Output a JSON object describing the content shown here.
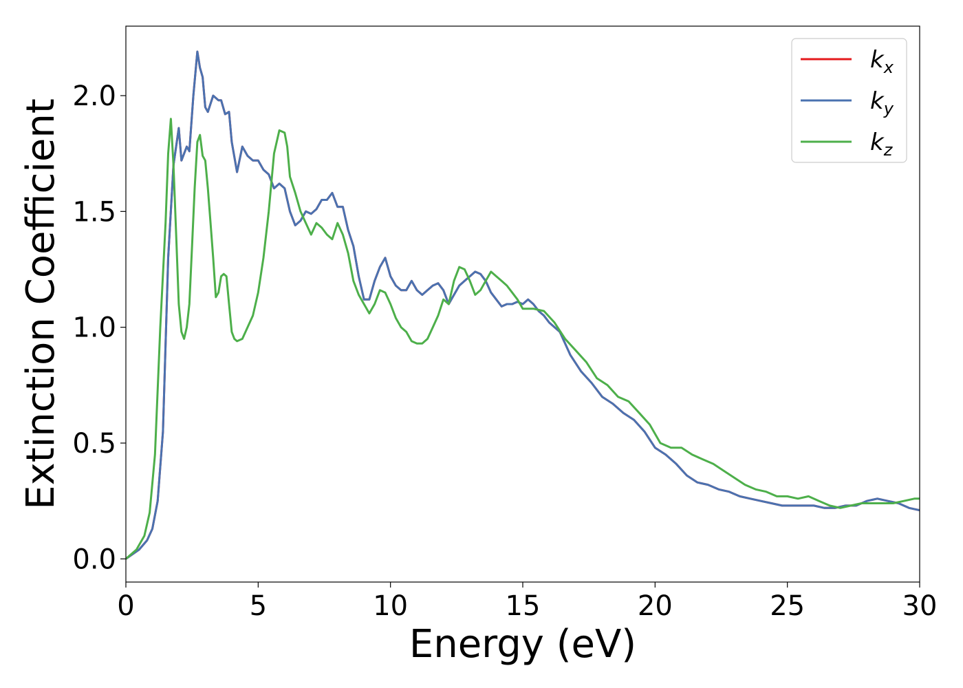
{
  "chart_data": {
    "type": "line",
    "xlabel": "Energy (eV)",
    "ylabel": "Extinction Coefficient",
    "xlim": [
      0,
      30
    ],
    "ylim": [
      -0.1,
      2.3
    ],
    "xticks": [
      "0",
      "5",
      "10",
      "15",
      "20",
      "25",
      "30"
    ],
    "yticks": [
      "0.0",
      "0.5",
      "1.0",
      "1.5",
      "2.0"
    ],
    "grid": false,
    "legend_position": "top-right",
    "series": [
      {
        "name": "k_x",
        "label_main": "k",
        "label_sub": "x",
        "color": "#e41a1c",
        "x": [
          0,
          0.5,
          0.8,
          1.0,
          1.2,
          1.4,
          1.6,
          1.8,
          2.0,
          2.1,
          2.3,
          2.4,
          2.55,
          2.7,
          2.8,
          2.9,
          3.0,
          3.1,
          3.3,
          3.5,
          3.6,
          3.75,
          3.9,
          4.0,
          4.2,
          4.4,
          4.6,
          4.8,
          5.0,
          5.2,
          5.4,
          5.6,
          5.8,
          6.0,
          6.2,
          6.4,
          6.6,
          6.8,
          7.0,
          7.2,
          7.4,
          7.6,
          7.8,
          8.0,
          8.2,
          8.4,
          8.6,
          8.8,
          9.0,
          9.2,
          9.4,
          9.6,
          9.8,
          10.0,
          10.2,
          10.4,
          10.6,
          10.8,
          11.0,
          11.2,
          11.4,
          11.6,
          11.8,
          12.0,
          12.2,
          12.4,
          12.6,
          12.8,
          13.0,
          13.2,
          13.4,
          13.6,
          13.8,
          14.0,
          14.2,
          14.4,
          14.6,
          14.8,
          15.0,
          15.2,
          15.4,
          15.6,
          15.8,
          16.0,
          16.4,
          16.8,
          17.2,
          17.6,
          18.0,
          18.4,
          18.8,
          19.2,
          19.6,
          20.0,
          20.4,
          20.8,
          21.2,
          21.6,
          22.0,
          22.4,
          22.8,
          23.2,
          23.6,
          24.0,
          24.4,
          24.8,
          25.2,
          25.6,
          26.0,
          26.4,
          26.8,
          27.2,
          27.6,
          28.0,
          28.4,
          28.8,
          29.2,
          29.6,
          30.0
        ],
        "y": [
          0.0,
          0.04,
          0.08,
          0.13,
          0.25,
          0.55,
          1.3,
          1.7,
          1.86,
          1.72,
          1.78,
          1.76,
          2.0,
          2.19,
          2.12,
          2.08,
          1.95,
          1.93,
          2.0,
          1.98,
          1.98,
          1.92,
          1.93,
          1.8,
          1.67,
          1.78,
          1.74,
          1.72,
          1.72,
          1.68,
          1.66,
          1.6,
          1.62,
          1.6,
          1.5,
          1.44,
          1.46,
          1.5,
          1.49,
          1.51,
          1.55,
          1.55,
          1.58,
          1.52,
          1.52,
          1.42,
          1.35,
          1.22,
          1.12,
          1.12,
          1.2,
          1.26,
          1.3,
          1.22,
          1.18,
          1.16,
          1.16,
          1.2,
          1.16,
          1.14,
          1.16,
          1.18,
          1.19,
          1.16,
          1.1,
          1.14,
          1.18,
          1.2,
          1.22,
          1.24,
          1.23,
          1.2,
          1.15,
          1.12,
          1.09,
          1.1,
          1.1,
          1.11,
          1.1,
          1.12,
          1.1,
          1.07,
          1.05,
          1.02,
          0.98,
          0.88,
          0.81,
          0.76,
          0.7,
          0.67,
          0.63,
          0.6,
          0.55,
          0.48,
          0.45,
          0.41,
          0.36,
          0.33,
          0.32,
          0.3,
          0.29,
          0.27,
          0.26,
          0.25,
          0.24,
          0.23,
          0.23,
          0.23,
          0.23,
          0.22,
          0.22,
          0.23,
          0.23,
          0.25,
          0.26,
          0.25,
          0.24,
          0.22,
          0.21
        ]
      },
      {
        "name": "k_y",
        "label_main": "k",
        "label_sub": "y",
        "color": "#4a72b0",
        "x": [
          0,
          0.5,
          0.8,
          1.0,
          1.2,
          1.4,
          1.6,
          1.8,
          2.0,
          2.1,
          2.3,
          2.4,
          2.55,
          2.7,
          2.8,
          2.9,
          3.0,
          3.1,
          3.3,
          3.5,
          3.6,
          3.75,
          3.9,
          4.0,
          4.2,
          4.4,
          4.6,
          4.8,
          5.0,
          5.2,
          5.4,
          5.6,
          5.8,
          6.0,
          6.2,
          6.4,
          6.6,
          6.8,
          7.0,
          7.2,
          7.4,
          7.6,
          7.8,
          8.0,
          8.2,
          8.4,
          8.6,
          8.8,
          9.0,
          9.2,
          9.4,
          9.6,
          9.8,
          10.0,
          10.2,
          10.4,
          10.6,
          10.8,
          11.0,
          11.2,
          11.4,
          11.6,
          11.8,
          12.0,
          12.2,
          12.4,
          12.6,
          12.8,
          13.0,
          13.2,
          13.4,
          13.6,
          13.8,
          14.0,
          14.2,
          14.4,
          14.6,
          14.8,
          15.0,
          15.2,
          15.4,
          15.6,
          15.8,
          16.0,
          16.4,
          16.8,
          17.2,
          17.6,
          18.0,
          18.4,
          18.8,
          19.2,
          19.6,
          20.0,
          20.4,
          20.8,
          21.2,
          21.6,
          22.0,
          22.4,
          22.8,
          23.2,
          23.6,
          24.0,
          24.4,
          24.8,
          25.2,
          25.6,
          26.0,
          26.4,
          26.8,
          27.2,
          27.6,
          28.0,
          28.4,
          28.8,
          29.2,
          29.6,
          30.0
        ],
        "y": [
          0.0,
          0.04,
          0.08,
          0.13,
          0.25,
          0.55,
          1.3,
          1.7,
          1.86,
          1.72,
          1.78,
          1.76,
          2.0,
          2.19,
          2.12,
          2.08,
          1.95,
          1.93,
          2.0,
          1.98,
          1.98,
          1.92,
          1.93,
          1.8,
          1.67,
          1.78,
          1.74,
          1.72,
          1.72,
          1.68,
          1.66,
          1.6,
          1.62,
          1.6,
          1.5,
          1.44,
          1.46,
          1.5,
          1.49,
          1.51,
          1.55,
          1.55,
          1.58,
          1.52,
          1.52,
          1.42,
          1.35,
          1.22,
          1.12,
          1.12,
          1.2,
          1.26,
          1.3,
          1.22,
          1.18,
          1.16,
          1.16,
          1.2,
          1.16,
          1.14,
          1.16,
          1.18,
          1.19,
          1.16,
          1.1,
          1.14,
          1.18,
          1.2,
          1.22,
          1.24,
          1.23,
          1.2,
          1.15,
          1.12,
          1.09,
          1.1,
          1.1,
          1.11,
          1.1,
          1.12,
          1.1,
          1.07,
          1.05,
          1.02,
          0.98,
          0.88,
          0.81,
          0.76,
          0.7,
          0.67,
          0.63,
          0.6,
          0.55,
          0.48,
          0.45,
          0.41,
          0.36,
          0.33,
          0.32,
          0.3,
          0.29,
          0.27,
          0.26,
          0.25,
          0.24,
          0.23,
          0.23,
          0.23,
          0.23,
          0.22,
          0.22,
          0.23,
          0.23,
          0.25,
          0.26,
          0.25,
          0.24,
          0.22,
          0.21
        ]
      },
      {
        "name": "k_z",
        "label_main": "k",
        "label_sub": "z",
        "color": "#4daf4a",
        "x": [
          0,
          0.4,
          0.7,
          0.9,
          1.1,
          1.3,
          1.5,
          1.6,
          1.7,
          1.8,
          1.9,
          2.0,
          2.1,
          2.2,
          2.3,
          2.4,
          2.5,
          2.6,
          2.7,
          2.8,
          2.9,
          3.0,
          3.1,
          3.2,
          3.3,
          3.4,
          3.5,
          3.6,
          3.7,
          3.8,
          3.9,
          4.0,
          4.1,
          4.2,
          4.4,
          4.6,
          4.8,
          5.0,
          5.2,
          5.4,
          5.6,
          5.8,
          6.0,
          6.1,
          6.2,
          6.4,
          6.6,
          6.8,
          7.0,
          7.2,
          7.4,
          7.6,
          7.8,
          8.0,
          8.2,
          8.4,
          8.6,
          8.8,
          9.0,
          9.2,
          9.4,
          9.6,
          9.8,
          10.0,
          10.2,
          10.4,
          10.6,
          10.8,
          11.0,
          11.2,
          11.4,
          11.6,
          11.8,
          12.0,
          12.2,
          12.4,
          12.6,
          12.8,
          13.0,
          13.2,
          13.4,
          13.6,
          13.8,
          14.0,
          14.2,
          14.4,
          14.6,
          14.8,
          15.0,
          15.4,
          15.8,
          16.2,
          16.6,
          17.0,
          17.4,
          17.8,
          18.2,
          18.6,
          19.0,
          19.4,
          19.8,
          20.2,
          20.6,
          21.0,
          21.4,
          21.8,
          22.2,
          22.6,
          23.0,
          23.4,
          23.8,
          24.2,
          24.6,
          25.0,
          25.4,
          25.8,
          26.2,
          26.6,
          27.0,
          27.4,
          27.8,
          28.2,
          28.6,
          29.0,
          29.4,
          29.8,
          30.0
        ],
        "y": [
          0.0,
          0.04,
          0.1,
          0.2,
          0.45,
          1.0,
          1.45,
          1.75,
          1.9,
          1.7,
          1.4,
          1.1,
          0.98,
          0.95,
          1.0,
          1.1,
          1.35,
          1.6,
          1.8,
          1.83,
          1.74,
          1.72,
          1.6,
          1.45,
          1.3,
          1.13,
          1.15,
          1.22,
          1.23,
          1.22,
          1.1,
          0.98,
          0.95,
          0.94,
          0.95,
          1.0,
          1.05,
          1.15,
          1.3,
          1.5,
          1.75,
          1.85,
          1.84,
          1.78,
          1.65,
          1.58,
          1.5,
          1.45,
          1.4,
          1.45,
          1.43,
          1.4,
          1.38,
          1.45,
          1.4,
          1.32,
          1.2,
          1.14,
          1.1,
          1.06,
          1.1,
          1.16,
          1.15,
          1.1,
          1.04,
          1.0,
          0.98,
          0.94,
          0.93,
          0.93,
          0.95,
          1.0,
          1.05,
          1.12,
          1.1,
          1.2,
          1.26,
          1.25,
          1.2,
          1.14,
          1.16,
          1.2,
          1.24,
          1.22,
          1.2,
          1.18,
          1.15,
          1.12,
          1.08,
          1.08,
          1.07,
          1.02,
          0.95,
          0.9,
          0.85,
          0.78,
          0.75,
          0.7,
          0.68,
          0.63,
          0.58,
          0.5,
          0.48,
          0.48,
          0.45,
          0.43,
          0.41,
          0.38,
          0.35,
          0.32,
          0.3,
          0.29,
          0.27,
          0.27,
          0.26,
          0.27,
          0.25,
          0.23,
          0.22,
          0.23,
          0.24,
          0.24,
          0.24,
          0.24,
          0.25,
          0.26,
          0.26
        ]
      }
    ]
  }
}
